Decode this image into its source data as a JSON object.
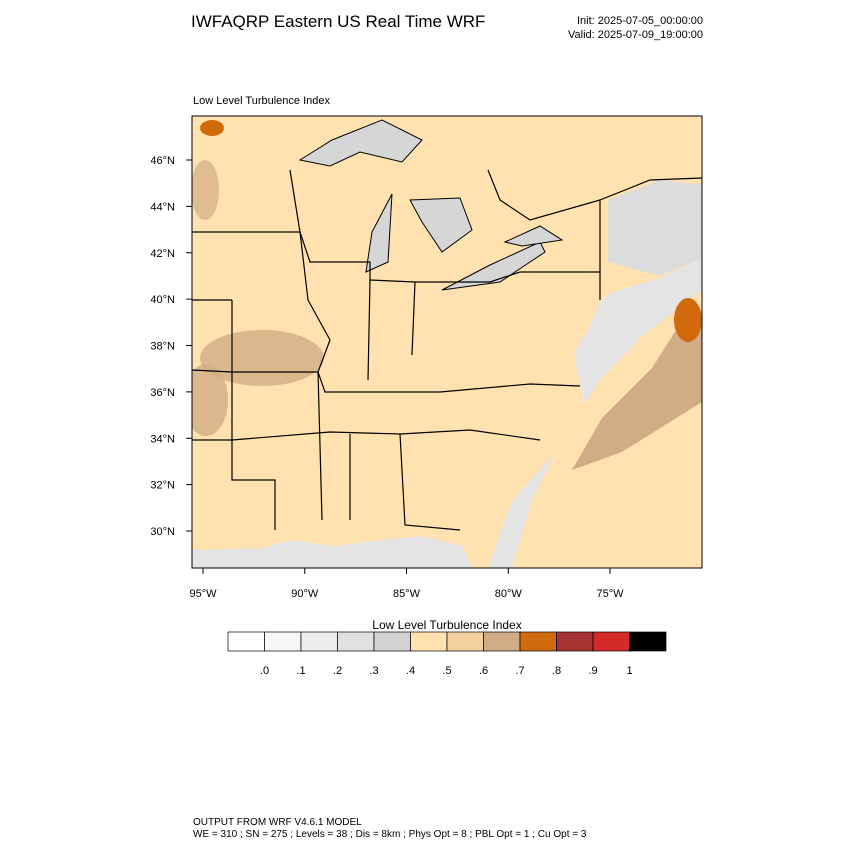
{
  "header": {
    "title": "IWFAQRP Eastern US Real Time WRF",
    "init": "Init: 2025-07-05_00:00:00",
    "valid": "Valid: 2025-07-09_19:00:00"
  },
  "map": {
    "subtitle": "Low Level Turbulence Index",
    "lat_ticks": [
      {
        "value": 30,
        "label": "30°N"
      },
      {
        "value": 32,
        "label": "32°N"
      },
      {
        "value": 34,
        "label": "34°N"
      },
      {
        "value": 36,
        "label": "36°N"
      },
      {
        "value": 38,
        "label": "38°N"
      },
      {
        "value": 40,
        "label": "40°N"
      },
      {
        "value": 42,
        "label": "42°N"
      },
      {
        "value": 44,
        "label": "44°N"
      },
      {
        "value": 46,
        "label": "46°N"
      }
    ],
    "lon_ticks": [
      {
        "value": -95,
        "label": "95°W"
      },
      {
        "value": -90,
        "label": "90°W"
      },
      {
        "value": -85,
        "label": "85°W"
      },
      {
        "value": -80,
        "label": "80°W"
      },
      {
        "value": -75,
        "label": "75°W"
      }
    ]
  },
  "colorbar": {
    "title": "Low Level Turbulence Index",
    "colors": [
      "#ffffff",
      "#f7f7f7",
      "#eeeeee",
      "#e0e0e0",
      "#d2d2d2",
      "#ffe2b0",
      "#f5d1a0",
      "#d2ac84",
      "#d06a0c",
      "#a83232",
      "#d42a2a",
      "#000000"
    ],
    "ticks": [
      {
        "value": 0,
        "label": ".0"
      },
      {
        "value": 0.1,
        "label": ".1"
      },
      {
        "value": 0.2,
        "label": ".2"
      },
      {
        "value": 0.3,
        "label": ".3"
      },
      {
        "value": 0.4,
        "label": ".4"
      },
      {
        "value": 0.5,
        "label": ".5"
      },
      {
        "value": 0.6,
        "label": ".6"
      },
      {
        "value": 0.7,
        "label": ".7"
      },
      {
        "value": 0.8,
        "label": ".8"
      },
      {
        "value": 0.9,
        "label": ".9"
      },
      1
    ]
  },
  "footer": {
    "lines": [
      "OUTPUT FROM WRF V4.6.1 MODEL",
      "WE = 310 ; SN = 275 ; Levels = 38 ; Dis = 8km ; Phys Opt = 8 ; PBL Opt = 1 ; Cu Opt = 3"
    ]
  }
}
